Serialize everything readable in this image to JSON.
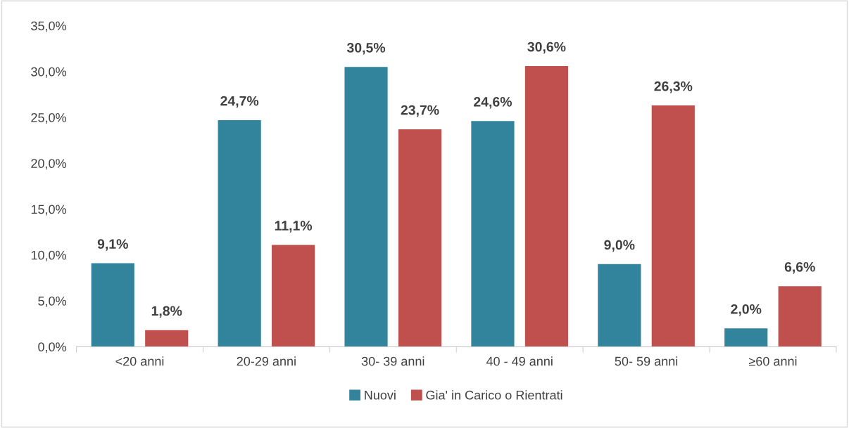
{
  "chart_data": {
    "type": "bar",
    "categories": [
      "<20 anni",
      "20-29 anni",
      "30- 39 anni",
      "40 - 49 anni",
      "50- 59 anni",
      "≥60 anni"
    ],
    "series": [
      {
        "name": "Nuovi",
        "color": "#31849b",
        "values": [
          9.1,
          24.7,
          30.5,
          24.6,
          9.0,
          2.0
        ],
        "value_labels": [
          "9,1%",
          "24,7%",
          "30,5%",
          "24,6%",
          "9,0%",
          "2,0%"
        ]
      },
      {
        "name": "Gia' in Carico o Rientrati",
        "color": "#c0504d",
        "values": [
          1.8,
          11.1,
          23.7,
          30.6,
          26.3,
          6.6
        ],
        "value_labels": [
          "1,8%",
          "11,1%",
          "23,7%",
          "30,6%",
          "26,3%",
          "6,6%"
        ]
      }
    ],
    "ylim": [
      0,
      35
    ],
    "yticks": [
      {
        "value": 0,
        "label": "0,0%"
      },
      {
        "value": 5,
        "label": "5,0%"
      },
      {
        "value": 10,
        "label": "10,0%"
      },
      {
        "value": 15,
        "label": "15,0%"
      },
      {
        "value": 20,
        "label": "20,0%"
      },
      {
        "value": 25,
        "label": "25,0%"
      },
      {
        "value": 30,
        "label": "30,0%"
      },
      {
        "value": 35,
        "label": "35,0%"
      }
    ],
    "grid": false,
    "legend": "bottom"
  }
}
